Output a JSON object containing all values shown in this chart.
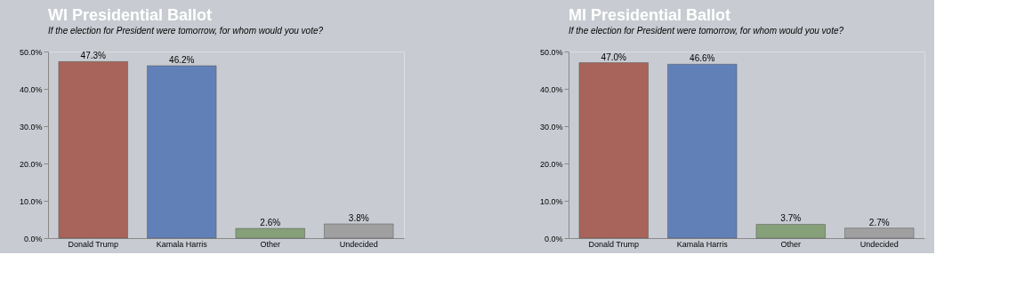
{
  "chart_data": [
    {
      "type": "bar",
      "title": "WI Presidential Ballot",
      "subtitle": "If the election for President were tomorrow, for whom would you vote?",
      "categories": [
        "Donald Trump",
        "Kamala Harris",
        "Other",
        "Undecided"
      ],
      "values": [
        47.3,
        46.2,
        2.6,
        3.8
      ],
      "colors": [
        "#a8645a",
        "#6280b8",
        "#86a07a",
        "#a0a0a0"
      ],
      "value_labels": [
        "47.3%",
        "46.2%",
        "2.6%",
        "3.8%"
      ],
      "ylim": [
        0,
        50
      ],
      "yticks": [
        {
          "value": 0,
          "label": "0.0%"
        },
        {
          "value": 10,
          "label": "10.0%"
        },
        {
          "value": 20,
          "label": "20.0%"
        },
        {
          "value": 30,
          "label": "30.0%"
        },
        {
          "value": 40,
          "label": "40.0%"
        },
        {
          "value": 50,
          "label": "50.0%"
        }
      ],
      "grid": false
    },
    {
      "type": "bar",
      "title": "MI Presidential Ballot",
      "subtitle": "If the election for President were tomorrow, for whom would you vote?",
      "categories": [
        "Donald Trump",
        "Kamala Harris",
        "Other",
        "Undecided"
      ],
      "values": [
        47.0,
        46.6,
        3.7,
        2.7
      ],
      "colors": [
        "#a8645a",
        "#6280b8",
        "#86a07a",
        "#a0a0a0"
      ],
      "value_labels": [
        "47.0%",
        "46.6%",
        "3.7%",
        "2.7%"
      ],
      "ylim": [
        0,
        50
      ],
      "yticks": [
        {
          "value": 0,
          "label": "0.0%"
        },
        {
          "value": 10,
          "label": "10.0%"
        },
        {
          "value": 20,
          "label": "20.0%"
        },
        {
          "value": 30,
          "label": "30.0%"
        },
        {
          "value": 40,
          "label": "40.0%"
        },
        {
          "value": 50,
          "label": "50.0%"
        }
      ],
      "grid": false
    }
  ]
}
